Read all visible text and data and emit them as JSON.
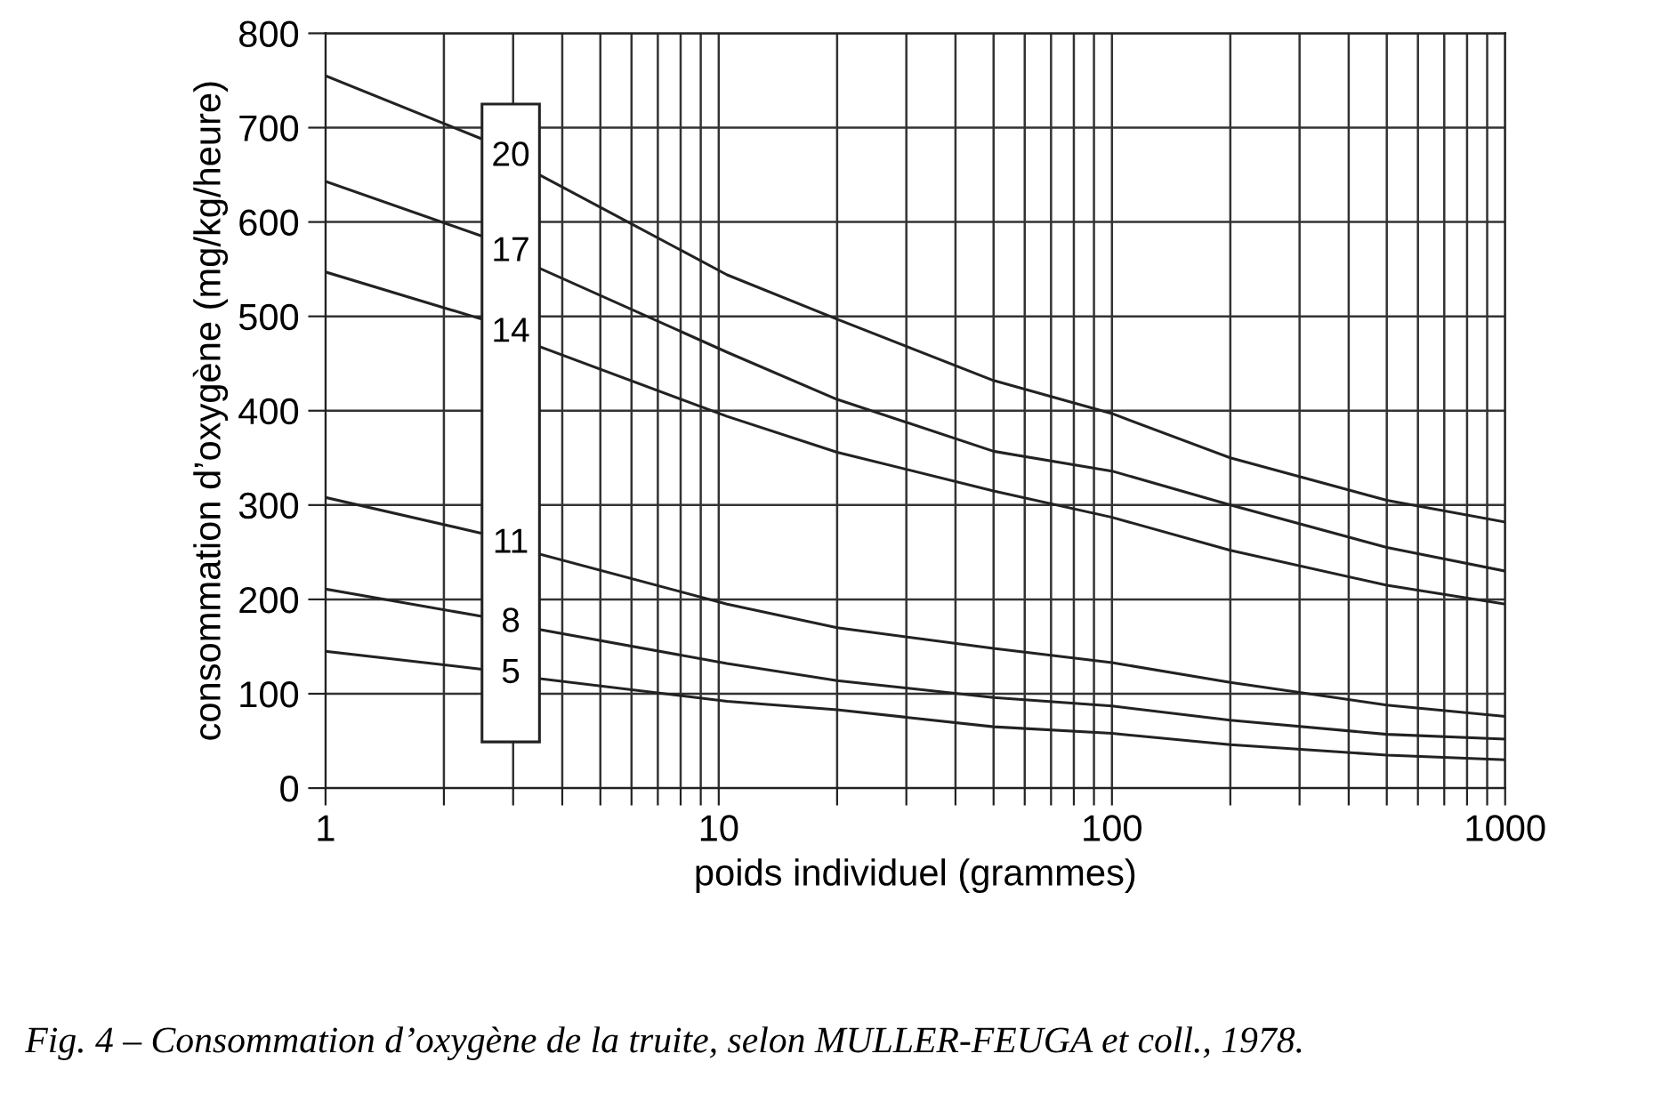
{
  "chart_data": {
    "type": "line",
    "xlabel": "poids individuel (grammes)",
    "ylabel": "consommation d’oxygène (mg/kg/heure)",
    "annotations": [
      "Fig. 4 – Consommation d’oxygène de la truite, selon MULLER-FEUGA et coll., 1978."
    ],
    "x": [
      1,
      2.5,
      3,
      3.5,
      10.5,
      20,
      50,
      100,
      200,
      500,
      1000
    ],
    "series": [
      {
        "name": "20",
        "color": "#222222",
        "values": [
          755,
          688,
          null,
          650,
          544,
          497,
          432,
          397,
          350,
          305,
          282
        ]
      },
      {
        "name": "17",
        "color": "#222222",
        "values": [
          643,
          585,
          null,
          551,
          462,
          412,
          357,
          336,
          300,
          255,
          230
        ]
      },
      {
        "name": "14",
        "color": "#222222",
        "values": [
          547,
          497,
          null,
          468,
          394,
          356,
          315,
          287,
          252,
          215,
          195
        ]
      },
      {
        "name": "11",
        "color": "#222222",
        "values": [
          308,
          270,
          null,
          248,
          195,
          170,
          148,
          133,
          112,
          88,
          76
        ]
      },
      {
        "name": "8",
        "color": "#222222",
        "values": [
          211,
          182,
          null,
          168,
          132,
          114,
          96,
          87,
          72,
          57,
          52
        ]
      },
      {
        "name": "5",
        "color": "#222222",
        "values": [
          145,
          126,
          null,
          116,
          92,
          83,
          65,
          58,
          46,
          35,
          30
        ]
      }
    ],
    "log": "x",
    "xlim": [
      1,
      1000
    ],
    "xticks": [
      1,
      {
        "value": 2,
        "label": null
      },
      {
        "value": 3,
        "label": null
      },
      {
        "value": 4,
        "label": null
      },
      {
        "value": 5,
        "label": null
      },
      {
        "value": 6,
        "label": null
      },
      {
        "value": 7,
        "label": null
      },
      {
        "value": 8,
        "label": null
      },
      {
        "value": 9,
        "label": null
      },
      10,
      {
        "value": 20,
        "label": null
      },
      {
        "value": 30,
        "label": null
      },
      {
        "value": 40,
        "label": null
      },
      {
        "value": 50,
        "label": null
      },
      {
        "value": 60,
        "label": null
      },
      {
        "value": 70,
        "label": null
      },
      {
        "value": 80,
        "label": null
      },
      {
        "value": 90,
        "label": null
      },
      100,
      {
        "value": 200,
        "label": null
      },
      {
        "value": 300,
        "label": null
      },
      {
        "value": 400,
        "label": null
      },
      {
        "value": 500,
        "label": null
      },
      {
        "value": 600,
        "label": null
      },
      {
        "value": 700,
        "label": null
      },
      {
        "value": 800,
        "label": null
      },
      {
        "value": 900,
        "label": null
      },
      1000
    ],
    "ylim": [
      0,
      800
    ],
    "yticks": [
      0,
      100,
      200,
      300,
      400,
      500,
      600,
      700,
      800
    ],
    "grid": true,
    "line_style": "solid",
    "marker": "none"
  }
}
